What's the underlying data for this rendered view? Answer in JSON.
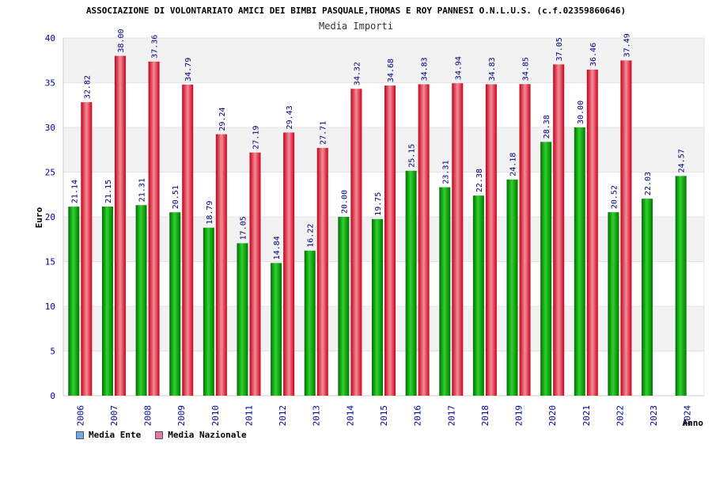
{
  "chart_data": {
    "type": "bar",
    "title": "ASSOCIAZIONE DI VOLONTARIATO AMICI DEI BIMBI PASQUALE,THOMAS E ROY PANNESI O.N.L.U.S. (c.f.02359860646)",
    "subtitle": "Media Importi",
    "xlabel": "Anno",
    "ylabel": "Euro",
    "ylim": [
      0,
      40
    ],
    "yticks": [
      "0",
      "5",
      "10",
      "15",
      "20",
      "25",
      "30",
      "35",
      "40"
    ],
    "categories": [
      "2006",
      "2007",
      "2008",
      "2009",
      "2010",
      "2011",
      "2012",
      "2013",
      "2014",
      "2015",
      "2016",
      "2017",
      "2018",
      "2019",
      "2020",
      "2021",
      "2022",
      "2023",
      "2024"
    ],
    "series": [
      {
        "name": "Media Ente",
        "values": [
          21.14,
          21.15,
          21.31,
          20.51,
          18.79,
          17.05,
          14.84,
          16.22,
          20.0,
          19.75,
          25.15,
          23.31,
          22.38,
          24.18,
          28.38,
          30.0,
          20.52,
          22.03,
          24.57
        ],
        "labels": [
          "21.14",
          "21.15",
          "21.31",
          "20.51",
          "18.79",
          "17.05",
          "14.84",
          "16.22",
          "20.00",
          "19.75",
          "25.15",
          "23.31",
          "22.38",
          "24.18",
          "28.38",
          "30.00",
          "20.52",
          "22.03",
          "24.57"
        ]
      },
      {
        "name": "Media Nazionale",
        "values": [
          32.82,
          38.0,
          37.36,
          34.79,
          29.24,
          27.19,
          29.43,
          27.71,
          34.32,
          34.68,
          34.83,
          34.94,
          34.83,
          34.85,
          37.05,
          36.46,
          37.49,
          null,
          null
        ],
        "labels": [
          "32.82",
          "38.00",
          "37.36",
          "34.79",
          "29.24",
          "27.19",
          "29.43",
          "27.71",
          "34.32",
          "34.68",
          "34.83",
          "34.94",
          "34.83",
          "34.85",
          "37.05",
          "36.46",
          "37.49",
          "",
          ""
        ]
      }
    ],
    "legend": {
      "position": "bottom-left",
      "items": [
        {
          "label": "Media Ente",
          "color": "#6fa8e8"
        },
        {
          "label": "Media Nazionale",
          "color": "#e07aa8"
        }
      ]
    },
    "colors": {
      "ente_dark": "#008800",
      "ente_light": "#2fd12f",
      "naz_dark": "#d0001a",
      "naz_light": "#f08a96",
      "band": "#f2f2f2",
      "axis_text": "#0000a0",
      "label_text": "#000080"
    },
    "grid": true
  }
}
